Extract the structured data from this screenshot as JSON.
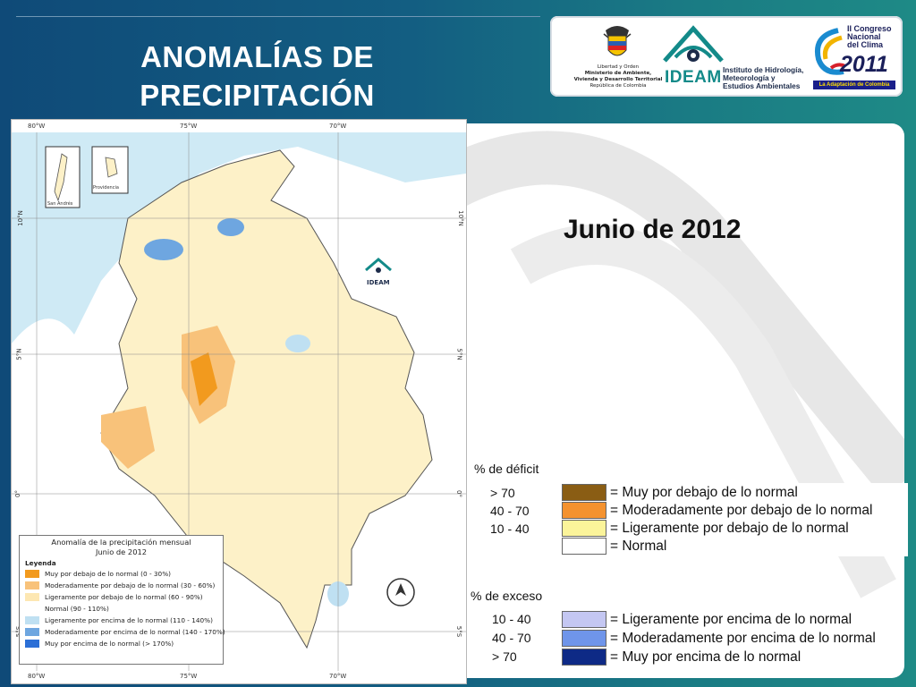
{
  "header": {
    "title_line1": "ANOMALÍAS DE",
    "title_line2": "PRECIPITACIÓN"
  },
  "logos": {
    "ministry": {
      "line1": "Libertad y Orden",
      "line2": "Ministerio de Ambiente,",
      "line3": "Vivienda y Desarrollo Territorial",
      "line4": "República de Colombia"
    },
    "ideam": {
      "name": "IDEAM",
      "line1": "Instituto de Hidrología,",
      "line2": "Meteorología y",
      "line3": "Estudios Ambientales"
    },
    "congreso": {
      "line1": "II Congreso",
      "line2": "Nacional",
      "line3": "del Clima",
      "year": "2011",
      "tagline": "La Adaptación de Colombia"
    }
  },
  "subtitle": "Junio de 2012",
  "map": {
    "top_coords": [
      "80°W",
      "75°W",
      "70°W"
    ],
    "bottom_coords": [
      "80°W",
      "75°W",
      "70°W"
    ],
    "left_coords": [
      "10°N",
      "5°N",
      "0°",
      "5°S"
    ],
    "right_coords": [
      "10°N",
      "5°N",
      "0°",
      "5°S"
    ],
    "inset_labels": [
      "San Andrés",
      "Providencia"
    ],
    "watermark_text": "IDEAM",
    "legend": {
      "title": "Anomalía de la precipitación mensual",
      "subtitle": "Junio de 2012",
      "heading": "Leyenda",
      "items": [
        {
          "label": "Muy por debajo de lo normal (0 - 30%)",
          "color": "#f29a1e"
        },
        {
          "label": "Moderadamente por debajo de lo normal (30 - 60%)",
          "color": "#f8c27a"
        },
        {
          "label": "Ligeramente por debajo de lo normal (60 - 90%)",
          "color": "#fde7b2"
        },
        {
          "label": "Normal (90 - 110%)",
          "color": "#ffffff"
        },
        {
          "label": "Ligeramente por encima de lo normal (110 - 140%)",
          "color": "#bfe0f2"
        },
        {
          "label": "Moderadamente por encima de lo normal (140 - 170%)",
          "color": "#6ea6e0"
        },
        {
          "label": "Muy por encima de lo normal (> 170%)",
          "color": "#2c6fd6"
        }
      ]
    }
  },
  "deficit": {
    "heading": "% de déficit",
    "ranges": [
      "> 70",
      "40 -  70",
      "10 -  40"
    ],
    "items": [
      {
        "label": "= Muy por debajo de lo normal",
        "color": "#8a5d14"
      },
      {
        "label": "= Moderadamente por debajo de lo normal",
        "color": "#f4922f"
      },
      {
        "label": "= Ligeramente por debajo de lo normal",
        "color": "#fbf49a"
      },
      {
        "label": "= Normal",
        "color": "#ffffff"
      }
    ]
  },
  "exceso": {
    "heading": "% de exceso",
    "ranges": [
      "10 -  40",
      "40 -  70",
      "> 70"
    ],
    "items": [
      {
        "label": "= Ligeramente por encima de lo normal",
        "color": "#c4c7f2"
      },
      {
        "label": "= Moderadamente por encima de lo normal",
        "color": "#6f95ea"
      },
      {
        "label": "= Muy por encima de lo normal",
        "color": "#0e2a86"
      }
    ]
  }
}
